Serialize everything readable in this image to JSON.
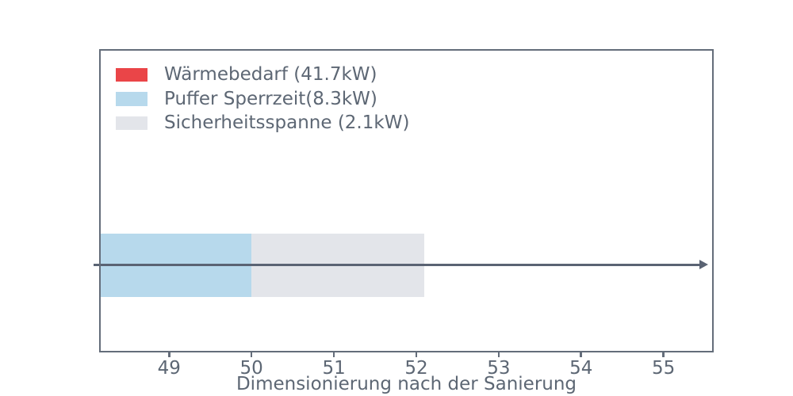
{
  "chart_data": {
    "type": "bar",
    "orientation": "horizontal",
    "stacked": true,
    "title": "",
    "xlabel": "Dimensionierung nach der Sanierung",
    "ylabel": "",
    "xticks": [
      49,
      50,
      51,
      52,
      53,
      54,
      55
    ],
    "xlim": [
      48.15,
      55.61
    ],
    "grid": false,
    "legend_position": "upper-left",
    "categories": [
      ""
    ],
    "series": [
      {
        "name": "Wärmebedarf (41.7kW)",
        "value": 41.7,
        "color": "#ea4548"
      },
      {
        "name": "Puffer Sperrzeit(8.3kW)",
        "value": 8.3,
        "color": "#b7d9ec"
      },
      {
        "name": "Sicherheitsspanne (2.1kW)",
        "value": 2.1,
        "color": "#e3e5ea"
      }
    ],
    "stack_boundaries": [
      41.7,
      50.0,
      52.1
    ],
    "bar": {
      "center_y_frac": 0.712,
      "height_frac": 0.209
    },
    "arrow": {
      "to_x": 55.54
    }
  },
  "colors": {
    "background": "#ffffff",
    "spine": "#646d7a",
    "text": "#5d6774",
    "arrow": "#5a6373"
  }
}
